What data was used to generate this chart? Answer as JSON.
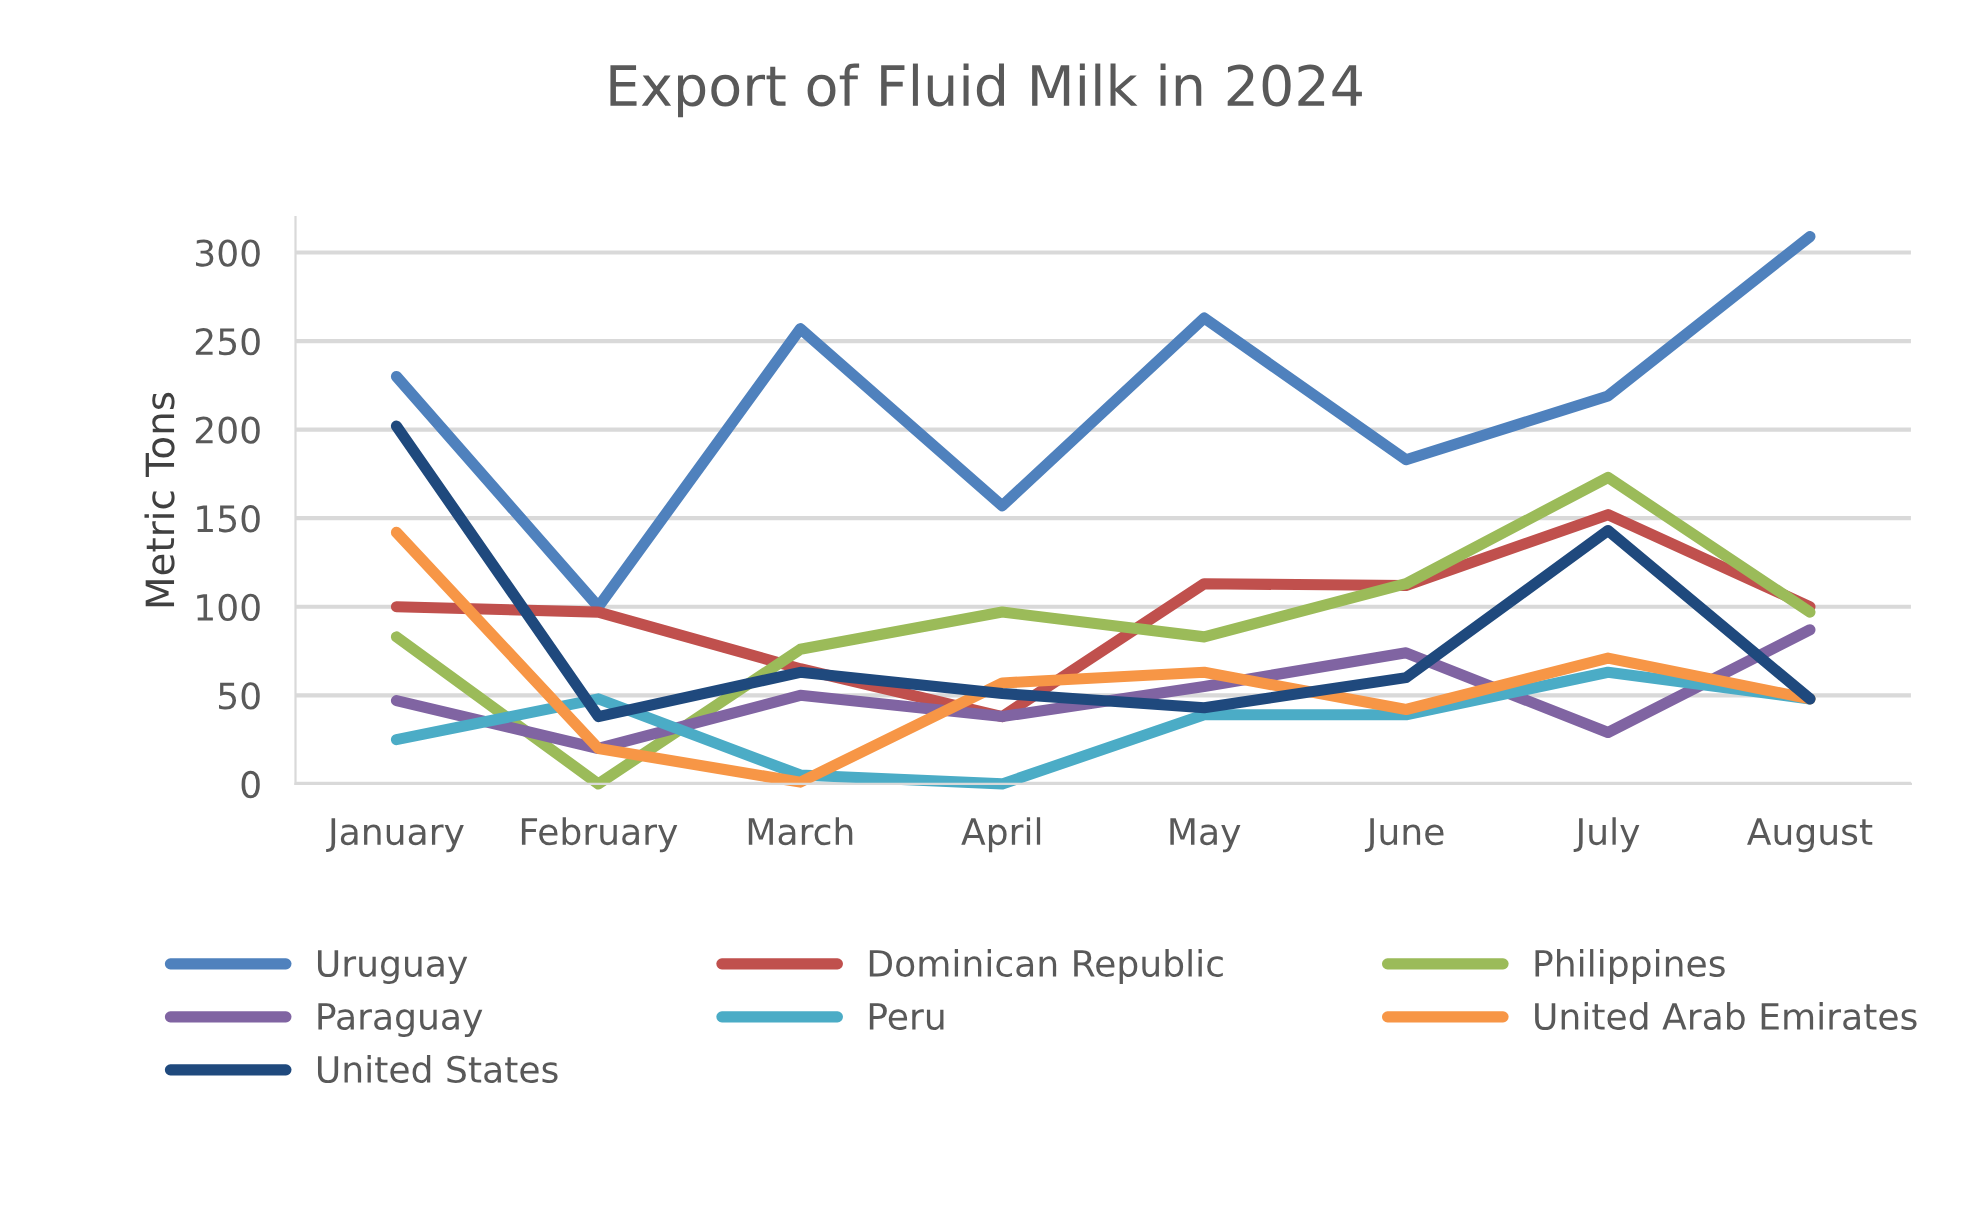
{
  "chart_data": {
    "type": "line",
    "title": "Export of Fluid Milk in 2024",
    "ylabel": "Metric Tons",
    "categories": [
      "January",
      "February",
      "March",
      "April",
      "May",
      "June",
      "July",
      "August"
    ],
    "series": [
      {
        "name": "Uruguay",
        "color": "#4f81bd",
        "values": [
          230,
          100,
          257,
          157,
          263,
          183,
          219,
          309
        ]
      },
      {
        "name": "Dominican Republic",
        "color": "#c0504d",
        "values": [
          100,
          97,
          65,
          38,
          113,
          112,
          152,
          100
        ]
      },
      {
        "name": "Philippines",
        "color": "#9bbb59",
        "values": [
          83,
          0,
          76,
          97,
          83,
          113,
          173,
          97
        ]
      },
      {
        "name": "Paraguay",
        "color": "#8064a2",
        "values": [
          47,
          20,
          50,
          38,
          55,
          74,
          29,
          87
        ]
      },
      {
        "name": "Peru",
        "color": "#4bacc6",
        "values": [
          25,
          48,
          5,
          0,
          39,
          39,
          63,
          48
        ]
      },
      {
        "name": "United Arab Emirates",
        "color": "#f79646",
        "values": [
          142,
          20,
          1,
          57,
          63,
          42,
          71,
          48
        ]
      },
      {
        "name": "United States",
        "color": "#1f497d",
        "values": [
          202,
          38,
          63,
          51,
          43,
          60,
          143,
          48
        ]
      }
    ],
    "ylim": [
      0,
      320
    ],
    "yticks": [
      0,
      50,
      100,
      150,
      200,
      250,
      300
    ],
    "grid": "y",
    "legend": "bottom",
    "marker": "none",
    "line_style": "solid"
  }
}
